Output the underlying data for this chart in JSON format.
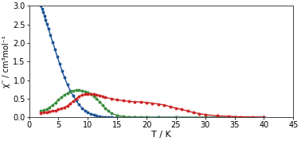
{
  "xlabel": "T / K",
  "ylabel": "χ′′ / cm³mol⁻¹",
  "xlim": [
    0,
    45
  ],
  "ylim": [
    0.0,
    3.0
  ],
  "xticks": [
    0,
    5,
    10,
    15,
    20,
    25,
    30,
    35,
    40,
    45
  ],
  "yticks": [
    0.0,
    0.5,
    1.0,
    1.5,
    2.0,
    2.5,
    3.0
  ],
  "blue_color": "#1a5296",
  "green_color": "#3a8c3f",
  "red_color": "#cc2222",
  "fig_bg": "#ffffff",
  "plot_bg": "#ffffff",
  "blue_data_T": [
    2.0,
    2.2,
    2.4,
    2.6,
    2.8,
    3.0,
    3.3,
    3.6,
    4.0,
    4.4,
    4.8,
    5.2,
    5.6,
    6.0,
    6.5,
    7.0,
    7.5,
    8.0,
    8.5,
    9.0,
    9.5,
    10.0,
    10.5,
    11.0,
    11.5,
    12.0,
    12.5,
    13.0,
    13.5,
    14.0,
    15.0,
    16.0,
    17.0,
    18.0,
    20.0,
    22.0,
    25.0,
    30.0,
    35.0,
    40.0
  ],
  "blue_data_chi": [
    3.0,
    2.92,
    2.83,
    2.73,
    2.63,
    2.52,
    2.38,
    2.22,
    2.03,
    1.83,
    1.63,
    1.44,
    1.25,
    1.08,
    0.89,
    0.72,
    0.58,
    0.45,
    0.34,
    0.25,
    0.18,
    0.13,
    0.09,
    0.06,
    0.04,
    0.025,
    0.015,
    0.009,
    0.005,
    0.003,
    0.001,
    0.001,
    0.001,
    0.001,
    0.001,
    0.001,
    0.001,
    0.001,
    0.001,
    0.001
  ],
  "green_data_T": [
    2.0,
    2.5,
    3.0,
    3.5,
    4.0,
    4.5,
    5.0,
    5.5,
    6.0,
    6.5,
    7.0,
    7.5,
    8.0,
    8.5,
    9.0,
    9.5,
    10.0,
    10.5,
    11.0,
    11.5,
    12.0,
    12.5,
    13.0,
    13.5,
    14.0,
    15.0,
    16.0,
    17.0,
    18.0,
    19.0,
    20.0,
    22.0,
    25.0,
    30.0,
    35.0,
    40.0
  ],
  "green_data_chi": [
    0.17,
    0.19,
    0.22,
    0.27,
    0.33,
    0.4,
    0.47,
    0.54,
    0.6,
    0.65,
    0.69,
    0.72,
    0.73,
    0.73,
    0.72,
    0.7,
    0.67,
    0.63,
    0.57,
    0.5,
    0.42,
    0.33,
    0.24,
    0.17,
    0.11,
    0.055,
    0.025,
    0.012,
    0.006,
    0.003,
    0.002,
    0.001,
    0.001,
    0.001,
    0.001,
    0.001
  ],
  "red_data_T": [
    2.0,
    2.5,
    3.0,
    3.5,
    4.0,
    4.5,
    5.0,
    5.5,
    6.0,
    6.5,
    7.0,
    7.5,
    8.0,
    8.5,
    9.0,
    9.5,
    10.0,
    10.5,
    11.0,
    11.5,
    12.0,
    12.5,
    13.0,
    14.0,
    15.0,
    16.0,
    17.0,
    18.0,
    19.0,
    20.0,
    21.0,
    22.0,
    23.0,
    24.0,
    25.0,
    26.0,
    27.0,
    28.0,
    29.0,
    30.0,
    32.0,
    34.0,
    36.0,
    38.0,
    40.0
  ],
  "red_data_chi": [
    0.12,
    0.13,
    0.14,
    0.155,
    0.17,
    0.185,
    0.21,
    0.235,
    0.27,
    0.31,
    0.37,
    0.43,
    0.5,
    0.56,
    0.6,
    0.62,
    0.63,
    0.63,
    0.62,
    0.61,
    0.59,
    0.57,
    0.54,
    0.5,
    0.47,
    0.45,
    0.43,
    0.42,
    0.41,
    0.4,
    0.38,
    0.36,
    0.33,
    0.29,
    0.25,
    0.21,
    0.17,
    0.13,
    0.1,
    0.07,
    0.04,
    0.025,
    0.015,
    0.008,
    0.004
  ],
  "marker_size": 2.8,
  "linewidth": 1.0,
  "tick_fontsize": 7,
  "label_fontsize": 8
}
